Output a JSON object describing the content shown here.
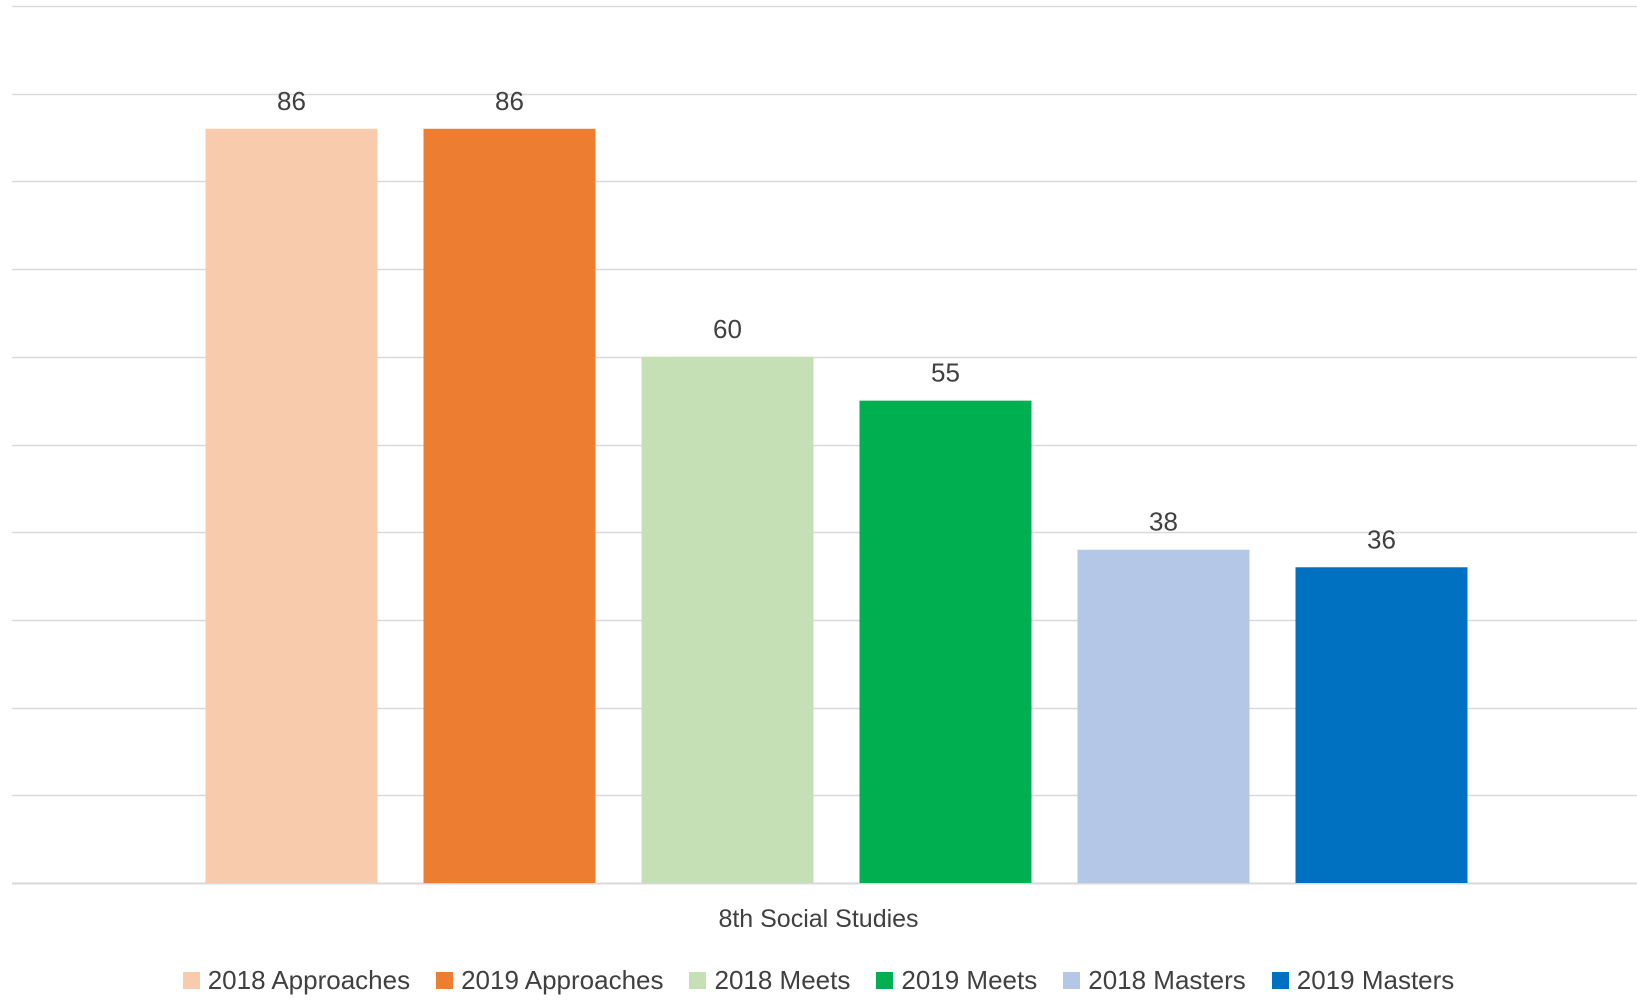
{
  "chart_data": {
    "type": "bar",
    "categories": [
      "8th Social Studies"
    ],
    "series": [
      {
        "name": "2018 Approaches",
        "values": [
          86
        ],
        "color": "#F8CBAD"
      },
      {
        "name": "2019 Approaches",
        "values": [
          86
        ],
        "color": "#ED7D31"
      },
      {
        "name": "2018 Meets",
        "values": [
          60
        ],
        "color": "#C5E0B4"
      },
      {
        "name": "2019 Meets",
        "values": [
          55
        ],
        "color": "#00B050"
      },
      {
        "name": "2018 Masters",
        "values": [
          38
        ],
        "color": "#B4C7E7"
      },
      {
        "name": "2019 Masters",
        "values": [
          36
        ],
        "color": "#0070C0"
      }
    ],
    "ylim": [
      0,
      100
    ],
    "y_gridline_step": 10,
    "grid": true,
    "y_axis_labels_shown": false,
    "data_labels": true,
    "legend_position": "bottom",
    "gridline_color": "#D9D9D9",
    "label_color": "#404040"
  }
}
